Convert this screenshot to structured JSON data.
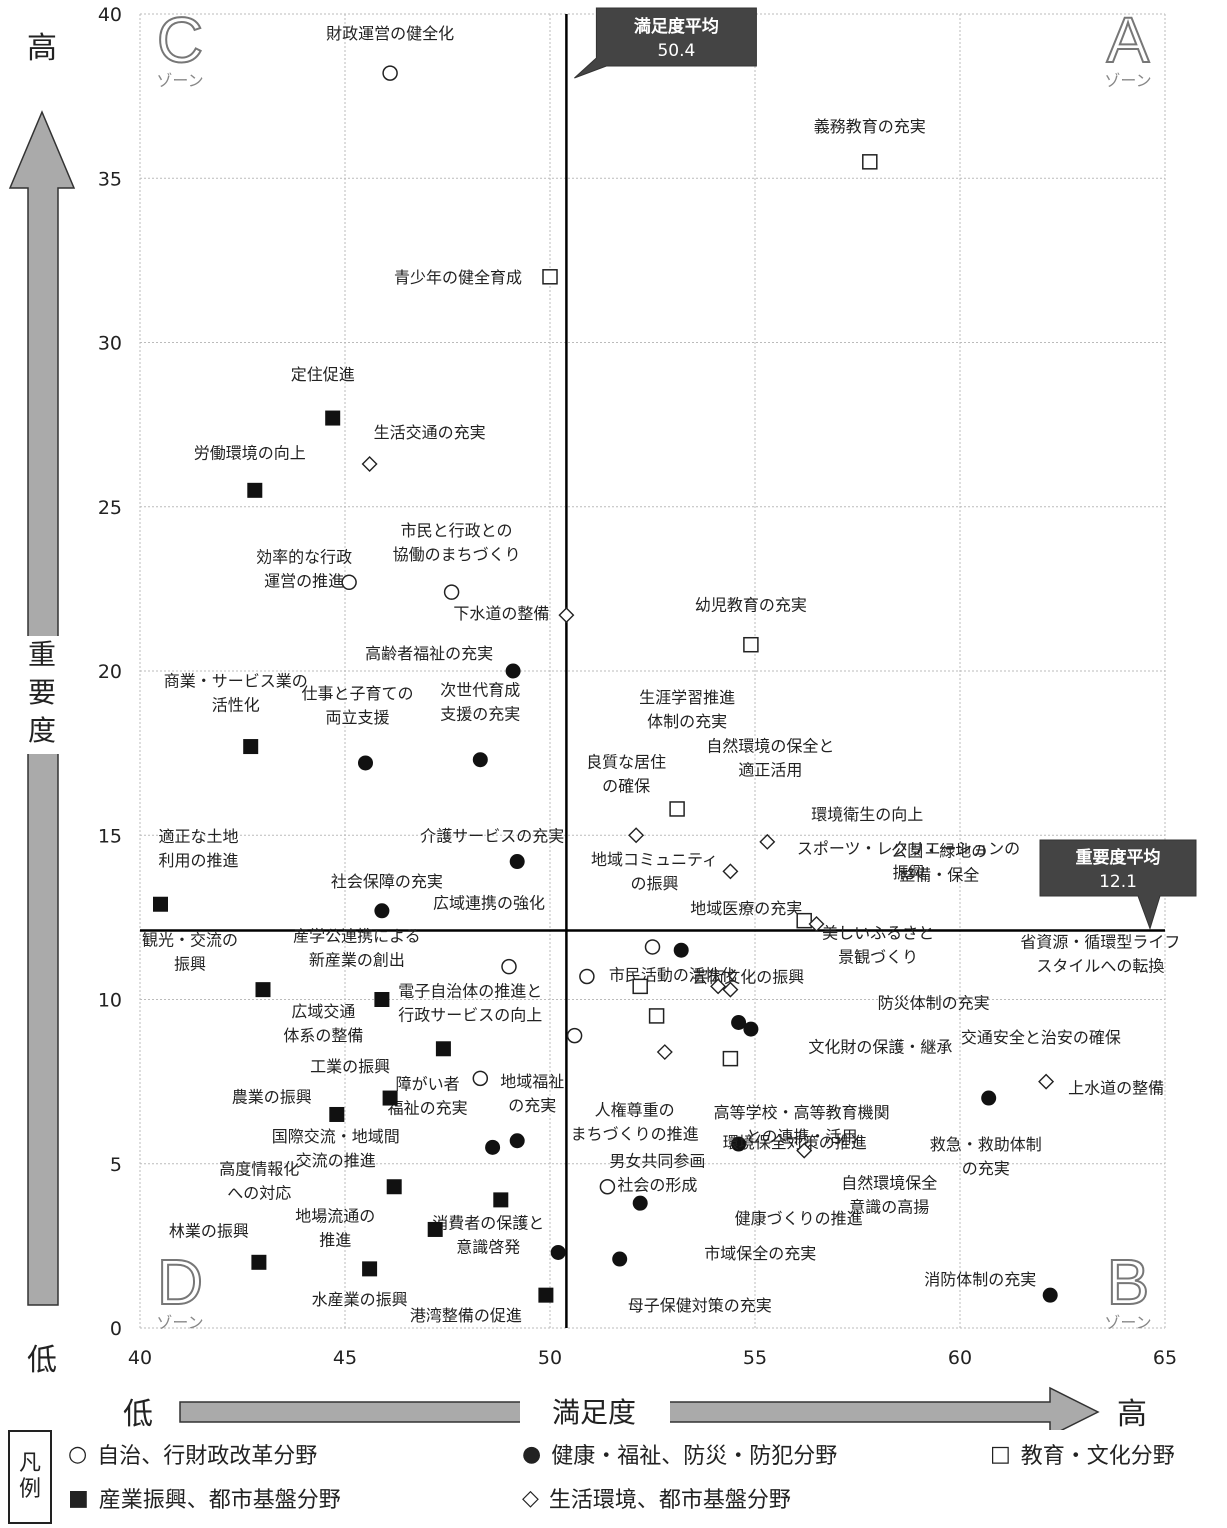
{
  "chart_data": {
    "type": "scatter",
    "xlim": [
      40,
      65
    ],
    "ylim": [
      0,
      40
    ],
    "x_ticks": [
      40,
      45,
      50,
      55,
      60,
      65
    ],
    "y_ticks": [
      0,
      5,
      10,
      15,
      20,
      25,
      30,
      35,
      40
    ],
    "x_axis_label": "満足度",
    "y_axis_label": "重要度",
    "low_label": "低",
    "high_label": "高",
    "grid": true,
    "mean_x": {
      "label": "満足度平均",
      "value": 50.4
    },
    "mean_y": {
      "label": "重要度平均",
      "value": 12.1
    },
    "zones": [
      {
        "letter": "A",
        "suffix": "ゾーン",
        "corner": "top-right"
      },
      {
        "letter": "B",
        "suffix": "ゾーン",
        "corner": "bottom-right"
      },
      {
        "letter": "C",
        "suffix": "ゾーン",
        "corner": "top-left"
      },
      {
        "letter": "D",
        "suffix": "ゾーン",
        "corner": "bottom-left"
      }
    ],
    "series": [
      {
        "name": "自治、行財政改革分野",
        "marker": "circle-open",
        "color": "#222222",
        "points": [
          {
            "label": "財政運営の健全化",
            "x": 46.1,
            "y": 38.2
          },
          {
            "label": "市民と行政との\n協働のまちづくり",
            "x": 47.6,
            "y": 22.4
          },
          {
            "label": "効率的な行政\n運営の推進",
            "x": 45.1,
            "y": 22.7
          },
          {
            "label": "広域連携の強化",
            "x": 49.0,
            "y": 11.0
          },
          {
            "label": "電子自治体の推進と\n行政サービスの向上",
            "x": 48.3,
            "y": 7.6
          },
          {
            "label": "人権尊重の\nまちづくりの推進",
            "x": 50.6,
            "y": 8.9
          },
          {
            "label": "市民活動の活性化",
            "x": 50.9,
            "y": 10.7
          },
          {
            "label": "地域コミュニティ\nの振興",
            "x": 52.5,
            "y": 11.6
          },
          {
            "label": "男女共同参画\n社会の形成",
            "x": 51.4,
            "y": 4.3
          }
        ]
      },
      {
        "name": "健康・福祉、防災・防犯分野",
        "marker": "circle-filled",
        "color": "#111111",
        "points": [
          {
            "label": "高齢者福祉の充実",
            "x": 49.1,
            "y": 20.0
          },
          {
            "label": "仕事と子育ての\n両立支援",
            "x": 45.5,
            "y": 17.2
          },
          {
            "label": "次世代育成\n支援の充実",
            "x": 48.3,
            "y": 17.3
          },
          {
            "label": "介護サービスの充実",
            "x": 49.2,
            "y": 14.2
          },
          {
            "label": "社会保障の充実",
            "x": 45.9,
            "y": 12.7
          },
          {
            "label": "地域医療の充実",
            "x": 53.2,
            "y": 11.5
          },
          {
            "label": "障がい者\n福祉の充実",
            "x": 48.6,
            "y": 5.5
          },
          {
            "label": "地域福祉\nの充実",
            "x": 49.2,
            "y": 5.7
          },
          {
            "label": "防災体制の充実",
            "x": 54.6,
            "y": 9.3
          },
          {
            "label": "交通安全と治安の確保",
            "x": 54.9,
            "y": 9.1
          },
          {
            "label": "救急・救助体制\nの充実",
            "x": 60.7,
            "y": 7.0
          },
          {
            "label": "健康づくりの推進",
            "x": 54.6,
            "y": 5.6
          },
          {
            "label": "市域保全の充実",
            "x": 52.2,
            "y": 3.8
          },
          {
            "label": "消費者の保護と\n意識啓発",
            "x": 50.2,
            "y": 2.3
          },
          {
            "label": "母子保健対策の充実",
            "x": 51.7,
            "y": 2.1
          },
          {
            "label": "消防体制の充実",
            "x": 62.2,
            "y": 1.0
          }
        ]
      },
      {
        "name": "教育・文化分野",
        "marker": "square-open",
        "color": "#222222",
        "points": [
          {
            "label": "義務教育の充実",
            "x": 57.8,
            "y": 35.5
          },
          {
            "label": "青少年の健全育成",
            "x": 50.0,
            "y": 32.0
          },
          {
            "label": "幼児教育の充実",
            "x": 54.9,
            "y": 20.8
          },
          {
            "label": "生涯学習推進\n体制の充実",
            "x": 53.1,
            "y": 15.8
          },
          {
            "label": "芸術文化の振興",
            "x": 52.2,
            "y": 10.4
          },
          {
            "label": "高等学校・高等教育機関\nとの連携・活用",
            "x": 52.6,
            "y": 9.5
          },
          {
            "label": "文化財の保護・継承",
            "x": 54.4,
            "y": 8.2
          },
          {
            "label": "公園・緑地の\n整備・保全",
            "x": 56.2,
            "y": 12.4
          }
        ]
      },
      {
        "name": "産業振興、都市基盤分野",
        "marker": "square-filled",
        "color": "#111111",
        "points": [
          {
            "label": "定住促進",
            "x": 44.7,
            "y": 27.7
          },
          {
            "label": "労働環境の向上",
            "x": 42.8,
            "y": 25.5
          },
          {
            "label": "商業・サービス業の\n活性化",
            "x": 42.7,
            "y": 17.7
          },
          {
            "label": "適正な土地\n利用の推進",
            "x": 40.5,
            "y": 12.9
          },
          {
            "label": "観光・交流の\n振興",
            "x": 43.0,
            "y": 10.3
          },
          {
            "label": "産学公連携による\n新産業の創出",
            "x": 45.9,
            "y": 10.0
          },
          {
            "label": "広域交通\n体系の整備",
            "x": 47.4,
            "y": 8.5
          },
          {
            "label": "工業の振興",
            "x": 46.1,
            "y": 7.0
          },
          {
            "label": "農業の振興",
            "x": 44.8,
            "y": 6.5
          },
          {
            "label": "国際交流・地域間\n交流の推進",
            "x": 48.8,
            "y": 3.9
          },
          {
            "label": "高度情報化\nへの対応",
            "x": 46.2,
            "y": 4.3
          },
          {
            "label": "地場流通の\n推進",
            "x": 47.2,
            "y": 3.0
          },
          {
            "label": "林業の振興",
            "x": 42.9,
            "y": 2.0
          },
          {
            "label": "水産業の振興",
            "x": 45.6,
            "y": 1.8
          },
          {
            "label": "港湾整備の促進",
            "x": 49.9,
            "y": 1.0
          }
        ]
      },
      {
        "name": "生活環境、都市基盤分野",
        "marker": "diamond-open",
        "color": "#222222",
        "points": [
          {
            "label": "生活交通の充実",
            "x": 45.6,
            "y": 26.3
          },
          {
            "label": "下水道の整備",
            "x": 50.4,
            "y": 21.7
          },
          {
            "label": "良質な居住\nの確保",
            "x": 52.1,
            "y": 15.0
          },
          {
            "label": "自然環境の保全と\n適正活用",
            "x": 54.4,
            "y": 13.9
          },
          {
            "label": "環境衛生の向上",
            "x": 55.3,
            "y": 14.8
          },
          {
            "label": "スポーツ・レクリエーションの\n振興",
            "x": 56.5,
            "y": 12.3
          },
          {
            "label": "美しいふるさと\n景観づくり",
            "x": 54.1,
            "y": 10.4
          },
          {
            "label": "省資源・循環型ライフ\nスタイルへの転換",
            "x": 54.4,
            "y": 10.3
          },
          {
            "label": "環境保全対策の推進",
            "x": 52.8,
            "y": 8.4
          },
          {
            "label": "自然環境保全\n意識の高揚",
            "x": 56.2,
            "y": 5.4
          },
          {
            "label": "上水道の整備",
            "x": 62.1,
            "y": 7.5
          }
        ]
      }
    ]
  },
  "legend": {
    "title_1": "凡",
    "title_2": "例",
    "items": [
      {
        "symbol": "○",
        "text": "自治、行財政改革分野"
      },
      {
        "symbol": "●",
        "text": "健康・福祉、防災・防犯分野"
      },
      {
        "symbol": "□",
        "text": "教育・文化分野"
      },
      {
        "symbol": "■",
        "text": "産業振興、都市基盤分野"
      },
      {
        "symbol": "◇",
        "text": "生活環境、都市基盤分野"
      }
    ]
  }
}
